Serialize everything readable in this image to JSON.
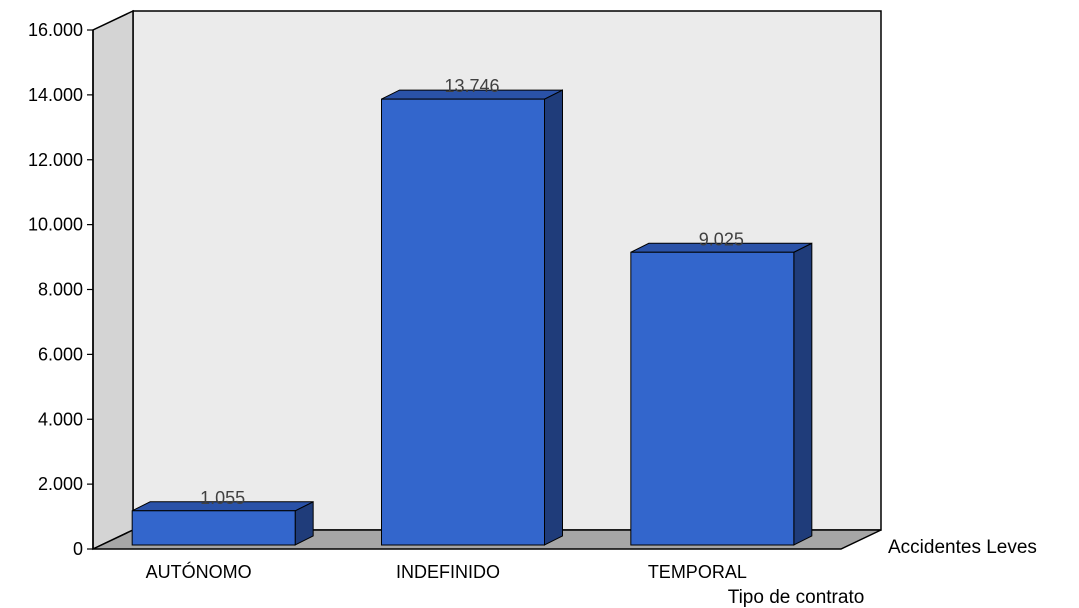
{
  "chart_data": {
    "type": "bar",
    "title": "",
    "xlabel": "Tipo de contrato",
    "ylabel": "",
    "categories": [
      "AUTÓNOMO",
      "INDEFINIDO",
      "TEMPORAL"
    ],
    "series": [
      {
        "name": "Accidentes Leves",
        "values": [
          1055,
          13746,
          9025
        ],
        "value_labels": [
          "1.055",
          "13.746",
          "9.025"
        ],
        "color": "#3366cc"
      }
    ],
    "ylim": [
      0,
      16000
    ],
    "yticks": [
      0,
      2000,
      4000,
      6000,
      8000,
      10000,
      12000,
      14000,
      16000
    ],
    "ytick_labels": [
      "0",
      "2.000",
      "4.000",
      "6.000",
      "8.000",
      "10.000",
      "12.000",
      "14.000",
      "16.000"
    ],
    "grid": false,
    "legend_position": "bottom-right",
    "style": "3d",
    "colors": {
      "bar_front": "#3366cc",
      "bar_side": "#1f3c7a",
      "bar_top": "#2a52a8",
      "back_wall": "#ebebeb",
      "side_wall": "#d4d4d4",
      "floor": "#a6a6a6"
    }
  }
}
